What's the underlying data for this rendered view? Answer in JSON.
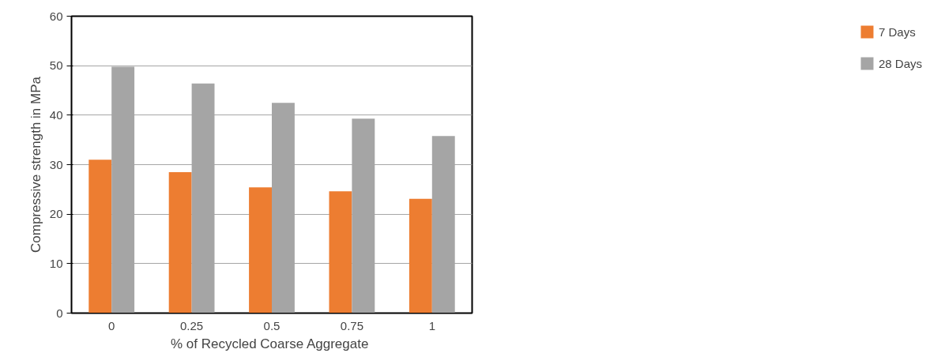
{
  "chart_data": {
    "type": "bar",
    "xlabel": "% of Recycled  Coarse Aggregate",
    "ylabel": "Compressive strength in MPa",
    "categories": [
      "0",
      "0.25",
      "0.5",
      "0.75",
      "1"
    ],
    "series": [
      {
        "name": "7 Days",
        "color": "#ed7d31",
        "values": [
          31,
          28.5,
          25.4,
          24.6,
          23.1
        ]
      },
      {
        "name": "28 Days",
        "color": "#a5a5a5",
        "values": [
          49.8,
          46.4,
          42.5,
          39.3,
          35.8
        ]
      }
    ],
    "ylim": [
      0,
      60
    ],
    "yticks": [
      0,
      10,
      20,
      30,
      40,
      50,
      60
    ],
    "grid": "y",
    "legend": "right"
  }
}
